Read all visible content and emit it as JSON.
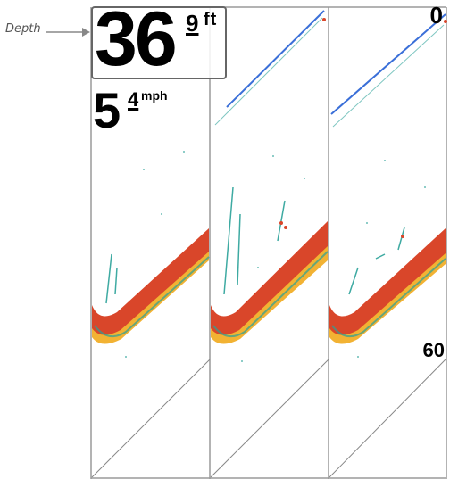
{
  "callout": {
    "label": "Depth"
  },
  "depth": {
    "whole": "36",
    "tenth": "9",
    "unit": "ft"
  },
  "speed": {
    "whole": "5",
    "tenth": "4",
    "unit": "mph"
  },
  "scale": {
    "top": "0",
    "bottom": "60"
  },
  "colors": {
    "bottom_return": "#d9462a",
    "bottom_edge": "#f2b233",
    "fish_arch": "#2aa198",
    "surface_line": "#3a6fd8",
    "panel_border": "#9a9a9a"
  }
}
